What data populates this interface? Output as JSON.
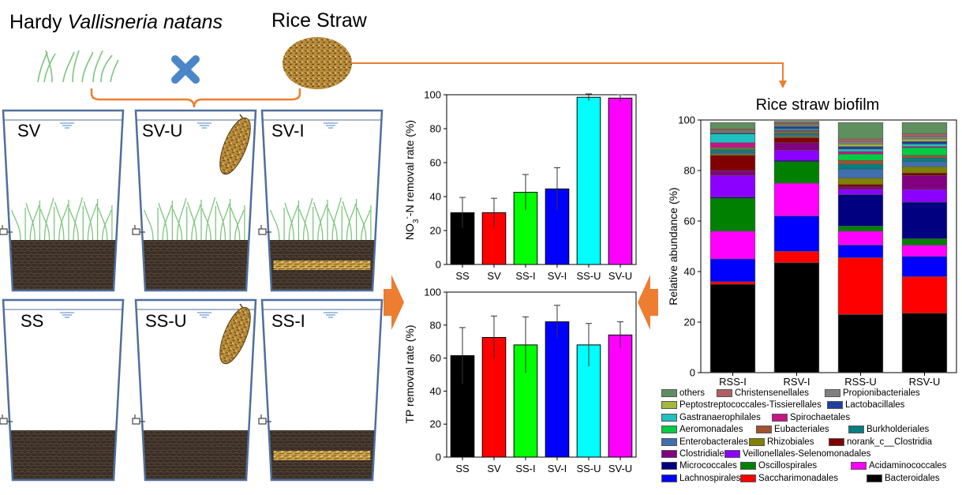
{
  "header": {
    "plant_prefix": "Hardy ",
    "plant_species": "Vallisneria natans",
    "straw_label": "Rice Straw"
  },
  "tanks": [
    {
      "label": "SV"
    },
    {
      "label": "SV-U"
    },
    {
      "label": "SV-I"
    },
    {
      "label": "SS"
    },
    {
      "label": "SS-U"
    },
    {
      "label": "SS-I"
    }
  ],
  "colors": {
    "arrow": "#ed7d31",
    "cross": "#4a86c8",
    "tank_border": "#4f6f9a",
    "sediment": "#3a2e26",
    "straw": "#c9a24a",
    "plant": "#7dc47d"
  },
  "chart_data": [
    {
      "type": "bar",
      "ylabel": "NO3--N removal rate (%)",
      "categories": [
        "SS",
        "SV",
        "SS-I",
        "SV-I",
        "SS-U",
        "SV-U"
      ],
      "values": [
        30.5,
        30.5,
        42.5,
        44.5,
        98.5,
        98.0
      ],
      "errors": [
        9,
        8.5,
        10.5,
        12.5,
        2,
        2
      ],
      "colors": [
        "#000000",
        "#ff0000",
        "#00ff00",
        "#0000ff",
        "#00ffff",
        "#ff00ff"
      ],
      "ylim": [
        0,
        100
      ],
      "yticks": [
        "0",
        "20",
        "40",
        "60",
        "80",
        "100"
      ]
    },
    {
      "type": "bar",
      "ylabel": "TP removal rate (%)",
      "categories": [
        "SS",
        "SV",
        "SS-I",
        "SV-I",
        "SS-U",
        "SV-U"
      ],
      "values": [
        61.5,
        72.5,
        68.0,
        82.0,
        68.0,
        74.0
      ],
      "errors": [
        17,
        13,
        17,
        10,
        13,
        8
      ],
      "colors": [
        "#000000",
        "#ff0000",
        "#00ff00",
        "#0000ff",
        "#00ffff",
        "#ff00ff"
      ],
      "ylim": [
        0,
        100
      ],
      "yticks": [
        "0",
        "20",
        "40",
        "60",
        "80",
        "100"
      ]
    },
    {
      "type": "bar",
      "stacked": true,
      "title": "Rice straw biofilm",
      "ylabel": "Relative abundance (%)",
      "categories": [
        "RSS-I",
        "RSV-I",
        "RSS-U",
        "RSV-U"
      ],
      "ylim": [
        0,
        100
      ],
      "yticks": [
        "0",
        "20",
        "40",
        "60",
        "80",
        "100"
      ],
      "series": [
        {
          "name": "Bacteroidales",
          "color": "#000000",
          "values": [
            35,
            43.5,
            23,
            23.5
          ]
        },
        {
          "name": "Saccharimonadales",
          "color": "#ff0000",
          "values": [
            1,
            4.5,
            22.5,
            14.5
          ]
        },
        {
          "name": "Lachnospirales",
          "color": "#0000ff",
          "values": [
            9,
            14,
            5,
            8
          ]
        },
        {
          "name": "Acidaminococcales",
          "color": "#ff00ff",
          "values": [
            11,
            13,
            5.5,
            4.5
          ]
        },
        {
          "name": "Oscillospirales",
          "color": "#008000",
          "values": [
            13,
            8.5,
            2,
            2.5
          ]
        },
        {
          "name": "Micrococcales",
          "color": "#000080",
          "values": [
            0.5,
            0.5,
            12.5,
            14.5
          ]
        },
        {
          "name": "Veillonellales-Selenomonadales",
          "color": "#8b00ff",
          "values": [
            8.5,
            4,
            2,
            5
          ]
        },
        {
          "name": "Clostridiales",
          "color": "#800080",
          "values": [
            2,
            3,
            1,
            5.5
          ]
        },
        {
          "name": "norank_c__Clostridia",
          "color": "#800000",
          "values": [
            6,
            2,
            1,
            1
          ]
        },
        {
          "name": "Rhizobiales",
          "color": "#808000",
          "values": [
            0.5,
            0.5,
            2.5,
            2.5
          ]
        },
        {
          "name": "Enterobacterales",
          "color": "#3f6faf",
          "values": [
            0.5,
            0.5,
            3.5,
            2
          ]
        },
        {
          "name": "Burkholderiales",
          "color": "#008080",
          "values": [
            1,
            0.5,
            2,
            1.5
          ]
        },
        {
          "name": "Eubacteriales",
          "color": "#a0522d",
          "values": [
            0.5,
            0.5,
            1.5,
            1
          ]
        },
        {
          "name": "Aeromonadales",
          "color": "#00cc44",
          "values": [
            0.5,
            0.5,
            2.5,
            3
          ]
        },
        {
          "name": "Spirochaetales",
          "color": "#c71585",
          "values": [
            2,
            0.5,
            1,
            0.5
          ]
        },
        {
          "name": "Gastranaerophilales",
          "color": "#20c0c0",
          "values": [
            3.5,
            0.5,
            1,
            1
          ]
        },
        {
          "name": "Lactobacillales",
          "color": "#1f3f9f",
          "values": [
            0.5,
            1,
            1,
            1
          ]
        },
        {
          "name": "Peptostreptococcales-Tissierellales",
          "color": "#a4b83a",
          "values": [
            0.5,
            0.5,
            1,
            1
          ]
        },
        {
          "name": "Propionibacteriales",
          "color": "#808080",
          "values": [
            0.5,
            0.5,
            1,
            1
          ]
        },
        {
          "name": "Christensenellales",
          "color": "#b06060",
          "values": [
            0.5,
            0.5,
            1,
            1
          ]
        },
        {
          "name": "others",
          "color": "#5f8f5f",
          "values": [
            2.5,
            0.5,
            6.5,
            4.5
          ]
        }
      ]
    }
  ],
  "legend_rows": [
    [
      "others",
      "Christensenellales",
      "Propionibacteriales"
    ],
    [
      "Peptostreptococcales-Tissierellales",
      "Lactobacillales"
    ],
    [
      "Gastranaerophilales",
      "Spirochaetales"
    ],
    [
      "Aeromonadales",
      "Eubacteriales",
      "Burkholderiales"
    ],
    [
      "Enterobacterales",
      "Rhizobiales",
      "norank_c__Clostridia"
    ],
    [
      "Clostridiales",
      "Veillonellales-Selenomonadales"
    ],
    [
      "Micrococcales",
      "Oscillospirales",
      "Acidaminococcales"
    ],
    [
      "Lachnospirales",
      "Saccharimonadales",
      "Bacteroidales"
    ]
  ]
}
